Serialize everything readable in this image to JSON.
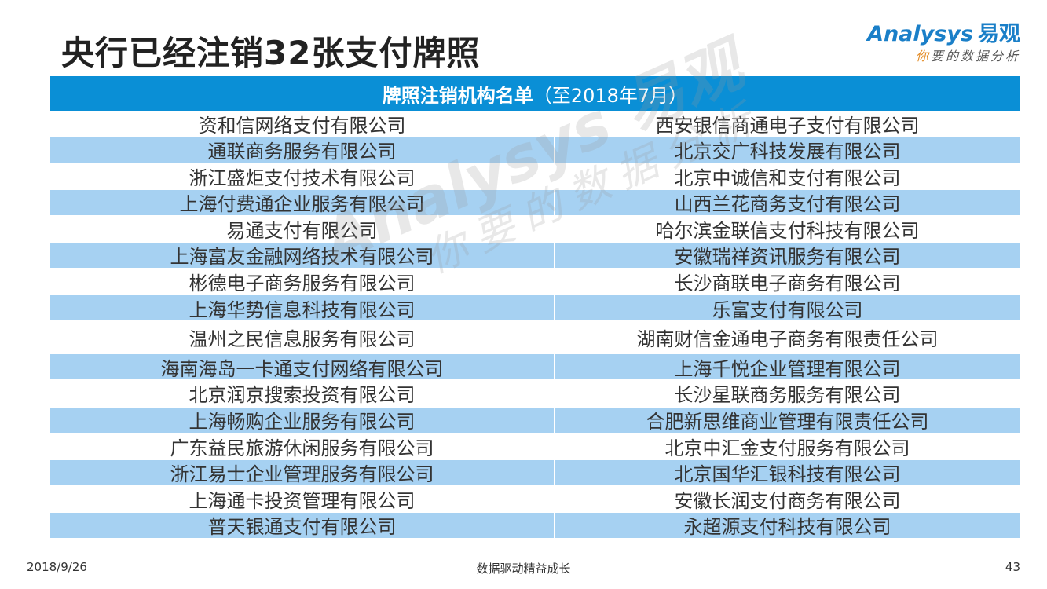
{
  "title": "央行已经注销32张支付牌照",
  "logo": {
    "brand_en": "Analysys",
    "brand_cn": "易观",
    "slogan_first": "你",
    "slogan_rest": "要的数据分析"
  },
  "table": {
    "header_bold": "牌照注销机构名单",
    "header_normal": "（至2018年7月）",
    "rows": [
      {
        "left": "资和信网络支付有限公司",
        "right": "西安银信商通电子支付有限公司"
      },
      {
        "left": "通联商务服务有限公司",
        "right": "北京交广科技发展有限公司"
      },
      {
        "left": "浙江盛炬支付技术有限公司",
        "right": "北京中诚信和支付有限公司"
      },
      {
        "left": "上海付费通企业服务有限公司",
        "right": "山西兰花商务支付有限公司"
      },
      {
        "left": "易通支付有限公司",
        "right": "哈尔滨金联信支付科技有限公司"
      },
      {
        "left": "上海富友金融网络技术有限公司",
        "right": "安徽瑞祥资讯服务有限公司"
      },
      {
        "left": "彬德电子商务服务有限公司",
        "right": "长沙商联电子商务有限公司"
      },
      {
        "left": "上海华势信息科技有限公司",
        "right": "乐富支付有限公司"
      },
      {
        "left": "温州之民信息服务有限公司",
        "right": "湖南财信金通电子商务有限责任公司"
      },
      {
        "left": "海南海岛一卡通支付网络有限公司",
        "right": "上海千悦企业管理有限公司"
      },
      {
        "left": "北京润京搜索投资有限公司",
        "right": "长沙星联商务服务有限公司"
      },
      {
        "left": "上海畅购企业服务有限公司",
        "right": "合肥新思维商业管理有限责任公司"
      },
      {
        "left": "广东益民旅游休闲服务有限公司",
        "right": "北京中汇金支付服务有限公司"
      },
      {
        "left": "浙江易士企业管理服务有限公司",
        "right": "北京国华汇银科技有限公司"
      },
      {
        "left": "上海通卡投资管理有限公司",
        "right": "安徽长润支付商务有限公司"
      },
      {
        "left": "普天银通支付有限公司",
        "right": "永超源支付科技有限公司"
      }
    ]
  },
  "watermark": {
    "line1": "Analysys 易观",
    "line2": "你要的数据分析"
  },
  "footer": {
    "date": "2018/9/26",
    "center": "数据驱动精益成长",
    "page": "43"
  },
  "colors": {
    "header_bg": "#0a8fd6",
    "shaded_row": "#a6d1f2",
    "brand_blue": "#1a7fc8",
    "slogan_orange": "#e38b25"
  }
}
